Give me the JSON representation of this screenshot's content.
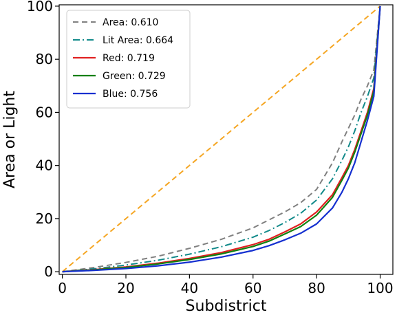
{
  "chart_data": {
    "type": "line",
    "xlabel": "Subdistrict",
    "ylabel": "Area or Light",
    "xlim": [
      -1,
      104
    ],
    "ylim": [
      -1,
      100.5
    ],
    "xticks": [
      "0",
      "20",
      "40",
      "60",
      "80",
      "100"
    ],
    "yticks": [
      "0",
      "20",
      "40",
      "60",
      "80",
      "100"
    ],
    "legend_position": "top-left",
    "grid": false,
    "series": [
      {
        "name": "Equality",
        "color": "#f5a623",
        "style": "dashed",
        "in_legend": false,
        "x": [
          0,
          100
        ],
        "y": [
          0,
          100
        ]
      },
      {
        "name": "Area: 0.610",
        "color": "#808080",
        "style": "dashed",
        "in_legend": true,
        "x": [
          0,
          10,
          20,
          30,
          40,
          50,
          60,
          65,
          70,
          75,
          80,
          85,
          88,
          90,
          92,
          94,
          96,
          98,
          100
        ],
        "y": [
          0,
          1.6,
          3.5,
          5.8,
          8.8,
          12.2,
          16.5,
          19.5,
          22.5,
          26,
          31,
          41,
          49,
          54,
          59,
          65,
          70,
          76,
          100
        ]
      },
      {
        "name": "Lit Area: 0.664",
        "color": "#128a8a",
        "style": "dashdot",
        "in_legend": true,
        "x": [
          0,
          10,
          20,
          30,
          40,
          50,
          60,
          65,
          70,
          75,
          80,
          85,
          88,
          90,
          92,
          94,
          96,
          98,
          100
        ],
        "y": [
          0,
          1.1,
          2.5,
          4.3,
          6.6,
          9.4,
          13,
          15.5,
          18.5,
          22,
          27,
          35,
          42,
          47,
          53,
          60,
          66,
          73,
          100
        ]
      },
      {
        "name": "Red: 0.719",
        "color": "#e02020",
        "style": "solid",
        "in_legend": true,
        "x": [
          0,
          10,
          20,
          30,
          40,
          50,
          60,
          65,
          70,
          75,
          80,
          85,
          88,
          90,
          92,
          94,
          96,
          98,
          100
        ],
        "y": [
          0,
          0.8,
          1.8,
          3.2,
          5,
          7.2,
          10.2,
          12.2,
          15,
          18,
          22.5,
          29,
          35.5,
          40,
          46,
          53,
          60,
          69,
          100
        ]
      },
      {
        "name": "Green: 0.729",
        "color": "#108010",
        "style": "solid",
        "in_legend": true,
        "x": [
          0,
          10,
          20,
          30,
          40,
          50,
          60,
          65,
          70,
          75,
          80,
          85,
          88,
          90,
          92,
          94,
          96,
          98,
          100
        ],
        "y": [
          0,
          0.7,
          1.6,
          2.9,
          4.6,
          6.7,
          9.5,
          11.5,
          14.2,
          17,
          21.3,
          28,
          34.5,
          39,
          45,
          52,
          59,
          68,
          100
        ]
      },
      {
        "name": "Blue: 0.756",
        "color": "#1530d0",
        "style": "solid",
        "in_legend": true,
        "x": [
          0,
          10,
          20,
          30,
          40,
          50,
          60,
          65,
          70,
          75,
          80,
          85,
          88,
          90,
          92,
          94,
          96,
          98,
          100
        ],
        "y": [
          0,
          0.5,
          1.2,
          2.2,
          3.6,
          5.5,
          8,
          9.8,
          12,
          14.5,
          18,
          24,
          30,
          35,
          41,
          49,
          57,
          66,
          100
        ]
      }
    ]
  }
}
